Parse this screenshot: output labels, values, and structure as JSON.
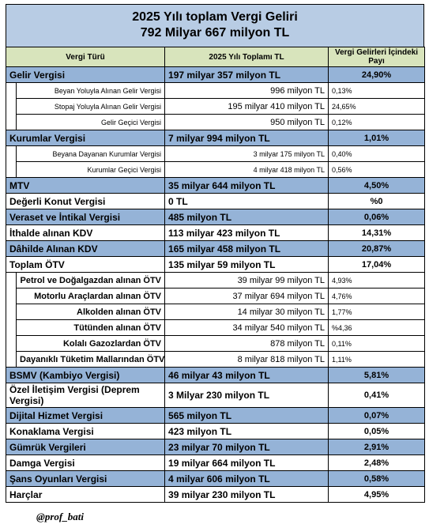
{
  "title": [
    "2025 Yılı toplam Vergi Geliri",
    "792 Milyar 667 milyon TL"
  ],
  "columns": [
    "Vergi Türü",
    "2025 Yılı Toplamı TL",
    "Vergi Gelirleri İçindeki Payı"
  ],
  "rows": [
    [
      "Gelir Vergisi",
      "197 milyar 357 milyon TL",
      "24,90%"
    ],
    [
      "Beyan Yoluyla Alınan Gelir Vergisi",
      "996 milyon TL",
      "0,13%"
    ],
    [
      "Stopaj Yoluyla Alınan Gelir Vergisi",
      "195 milyar 410 milyon TL",
      "24,65%"
    ],
    [
      "Gelir Geçici Vergisi",
      "950 milyon TL",
      "0,12%"
    ],
    [
      "Kurumlar Vergisi",
      "7 milyar 994 milyon TL",
      "1,01%"
    ],
    [
      "Beyana Dayanan Kurumlar Vergisi",
      "3 milyar 175 milyon TL",
      "0,40%"
    ],
    [
      "Kurumlar Geçici Vergisi",
      "4 milyar 418 milyon TL",
      "0,56%"
    ],
    [
      "MTV",
      "35 milyar 644 milyon TL",
      "4,50%"
    ],
    [
      "Değerli Konut Vergisi",
      "0 TL",
      "%0"
    ],
    [
      "Veraset ve İntikal Vergisi",
      "485 milyon TL",
      "0,06%"
    ],
    [
      "İthalde alınan KDV",
      "113 milyar 423 milyon TL",
      "14,31%"
    ],
    [
      "Dâhilde Alınan KDV",
      "165 milyar 458 milyon TL",
      "20,87%"
    ],
    [
      "Toplam ÖTV",
      "135 milyar 59 milyon TL",
      "17,04%"
    ],
    [
      "Petrol ve Doğalgazdan alınan ÖTV",
      "39 milyar 99 milyon TL",
      "4,93%"
    ],
    [
      "Motorlu Araçlardan alınan ÖTV",
      "37 milyar 694 milyon TL",
      "4,76%"
    ],
    [
      "Alkolden alınan ÖTV",
      "14 milyar 30 milyon TL",
      "1,77%"
    ],
    [
      "Tütünden alınan ÖTV",
      "34 milyar 540 milyon TL",
      "%4,36"
    ],
    [
      "Kolalı Gazozlardan ÖTV",
      "878 milyon TL",
      "0,11%"
    ],
    [
      "Dayanıklı Tüketim Mallarından ÖTV",
      "8 milyar 818 milyon TL",
      "1,11%"
    ],
    [
      "BSMV (Kambiyo Vergisi)",
      "46 milyar 43 milyon TL",
      "5,81%"
    ],
    [
      "Özel İletişim Vergisi (Deprem Vergisi)",
      "3 Milyar 230 milyon TL",
      "0,41%"
    ],
    [
      "Dijital Hizmet Vergisi",
      "565 milyon TL",
      "0,07%"
    ],
    [
      "Konaklama Vergisi",
      "423 milyon TL",
      "0,05%"
    ],
    [
      "Gümrük Vergileri",
      "23 milyar 70 milyon TL",
      "2,91%"
    ],
    [
      "Damga Vergisi",
      "19 milyar 664 milyon TL",
      "2,48%"
    ],
    [
      "Şans Oyunları Vergisi",
      "4 milyar 606 milyon TL",
      "0,58%"
    ],
    [
      "Harçlar",
      "39 milyar 230 milyon TL",
      "4,95%"
    ]
  ],
  "footer": "@prof_bati"
}
